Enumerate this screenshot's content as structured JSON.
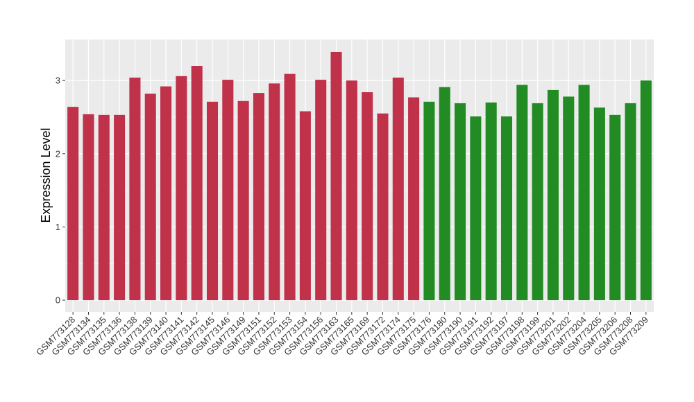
{
  "chart_data": {
    "type": "bar",
    "title": "",
    "xlabel": "",
    "ylabel": "Expression Level",
    "ylim": [
      -0.16,
      3.56
    ],
    "yticks": [
      0,
      1,
      2,
      3
    ],
    "grid": true,
    "legend": "none",
    "colors": {
      "group1": "#c0314a",
      "group2": "#238b23",
      "panel": "#ebebeb",
      "grid": "#ffffff"
    },
    "categories": [
      "GSM773128",
      "GSM773134",
      "GSM773135",
      "GSM773136",
      "GSM773138",
      "GSM773139",
      "GSM773140",
      "GSM773141",
      "GSM773142",
      "GSM773145",
      "GSM773146",
      "GSM773149",
      "GSM773151",
      "GSM773152",
      "GSM773153",
      "GSM773154",
      "GSM773156",
      "GSM773163",
      "GSM773165",
      "GSM773169",
      "GSM773172",
      "GSM773174",
      "GSM773175",
      "GSM773176",
      "GSM773180",
      "GSM773190",
      "GSM773191",
      "GSM773192",
      "GSM773197",
      "GSM773198",
      "GSM773199",
      "GSM773201",
      "GSM773202",
      "GSM773204",
      "GSM773205",
      "GSM773206",
      "GSM773208",
      "GSM773209"
    ],
    "values": [
      2.64,
      2.54,
      2.53,
      2.53,
      3.04,
      2.82,
      2.92,
      3.06,
      3.2,
      2.71,
      3.01,
      2.72,
      2.83,
      2.96,
      3.09,
      2.58,
      3.01,
      3.39,
      3.0,
      2.84,
      2.55,
      3.04,
      2.77,
      2.71,
      2.91,
      2.69,
      2.51,
      2.7,
      2.51,
      2.94,
      2.69,
      2.87,
      2.78,
      2.94,
      2.63,
      2.53,
      2.69,
      3.0
    ],
    "groups": [
      "group1",
      "group1",
      "group1",
      "group1",
      "group1",
      "group1",
      "group1",
      "group1",
      "group1",
      "group1",
      "group1",
      "group1",
      "group1",
      "group1",
      "group1",
      "group1",
      "group1",
      "group1",
      "group1",
      "group1",
      "group1",
      "group1",
      "group1",
      "group2",
      "group2",
      "group2",
      "group2",
      "group2",
      "group2",
      "group2",
      "group2",
      "group2",
      "group2",
      "group2",
      "group2",
      "group2",
      "group2",
      "group2"
    ]
  }
}
